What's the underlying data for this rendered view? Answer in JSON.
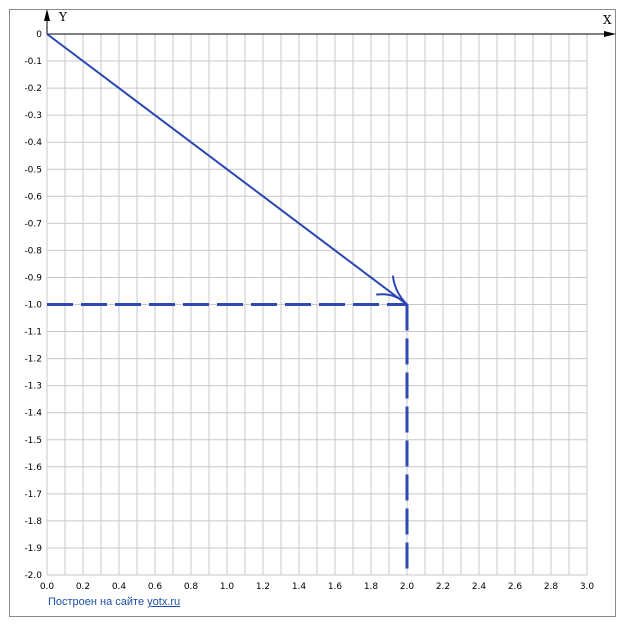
{
  "chart_data": {
    "type": "line",
    "xlabel": "X",
    "ylabel": "Y",
    "xlim": [
      0,
      3.0
    ],
    "ylim": [
      -2.0,
      0
    ],
    "x_step": 0.1,
    "y_step": 0.1,
    "x_ticks": [
      "0.0",
      "0.2",
      "0.4",
      "0.6",
      "0.8",
      "1.0",
      "1.2",
      "1.4",
      "1.6",
      "1.8",
      "2.0",
      "2.2",
      "2.4",
      "2.6",
      "2.8",
      "3.0"
    ],
    "y_ticks": [
      "0",
      "-0.1",
      "-0.2",
      "-0.3",
      "-0.4",
      "-0.5",
      "-0.6",
      "-0.7",
      "-0.8",
      "-0.9",
      "-1.0",
      "-1.1",
      "-1.2",
      "-1.3",
      "-1.4",
      "-1.5",
      "-1.6",
      "-1.7",
      "-1.8",
      "-1.9",
      "-2.0"
    ],
    "grid": true,
    "vector": {
      "from": [
        0,
        0
      ],
      "to": [
        2.0,
        -1.0
      ]
    },
    "dashed_guides": [
      {
        "from": [
          0,
          -1.0
        ],
        "to": [
          2.0,
          -1.0
        ]
      },
      {
        "from": [
          2.0,
          -1.0
        ],
        "to": [
          2.0,
          -2.0
        ]
      }
    ]
  },
  "colors": {
    "grid": "#c8c8c8",
    "axis": "#000000",
    "vector": "#2b46b0",
    "dashed": "#2e48b4",
    "credit": "#1d4fa3"
  },
  "credit": {
    "prefix": "Построен на сайте",
    "link": "yotx.ru"
  }
}
